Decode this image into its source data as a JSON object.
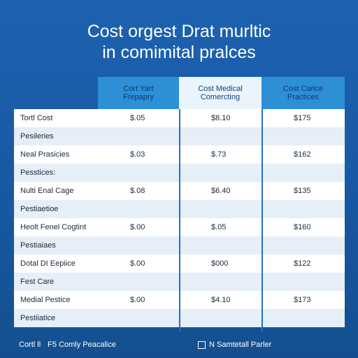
{
  "title": {
    "line1": "Cost orgest Drat murltic",
    "line2": "in comimital pralces"
  },
  "table": {
    "columns": [
      {
        "line1": "Cort Yart",
        "line2": "Frepapry"
      },
      {
        "line1": "Cost Medical",
        "line2": "Comercting"
      },
      {
        "line1": "Cost Carice",
        "line2": "Practices"
      }
    ],
    "rows": [
      {
        "label": "Tortl Cost",
        "v1": "$.05",
        "v2": "$8.10",
        "v3": "$175"
      },
      {
        "label": "Pesileries",
        "v1": "",
        "v2": "",
        "v3": ""
      },
      {
        "label": "Neal Prasicies",
        "v1": "$.03",
        "v2": "$.73",
        "v3": "$162"
      },
      {
        "label": "Pesstices:",
        "v1": "",
        "v2": "",
        "v3": ""
      },
      {
        "label": "Nulti Enal Cage",
        "v1": "$.08",
        "v2": "$6.40",
        "v3": "$135"
      },
      {
        "label": "Pestiaetioe",
        "v1": "",
        "v2": "",
        "v3": ""
      },
      {
        "label": "Heolt Fenel Cogtint",
        "v1": "$.00",
        "v2": "$.05",
        "v3": "$160"
      },
      {
        "label": "Pestiaiaes",
        "v1": "",
        "v2": "",
        "v3": ""
      },
      {
        "label": "Dotal DI Eepiice",
        "v1": "$.00",
        "v2": "$000",
        "v3": "$122"
      },
      {
        "label": "Fest Care",
        "v1": "",
        "v2": "",
        "v3": ""
      },
      {
        "label": "Medial Pestice",
        "v1": "$.00",
        "v2": "$4.10",
        "v3": "$173"
      },
      {
        "label": "Pestiiatice",
        "v1": "",
        "v2": "",
        "v3": ""
      }
    ]
  },
  "footer": {
    "left_a": "Cortl ll",
    "left_b": "F5 Comly Peacalice",
    "right": "N Samtetall Parler"
  },
  "colors": {
    "background": "#1d62b0",
    "header_accent": "#2d8fd6",
    "header_light": "#eaf4fd",
    "row_alt": "#e6eef8"
  }
}
